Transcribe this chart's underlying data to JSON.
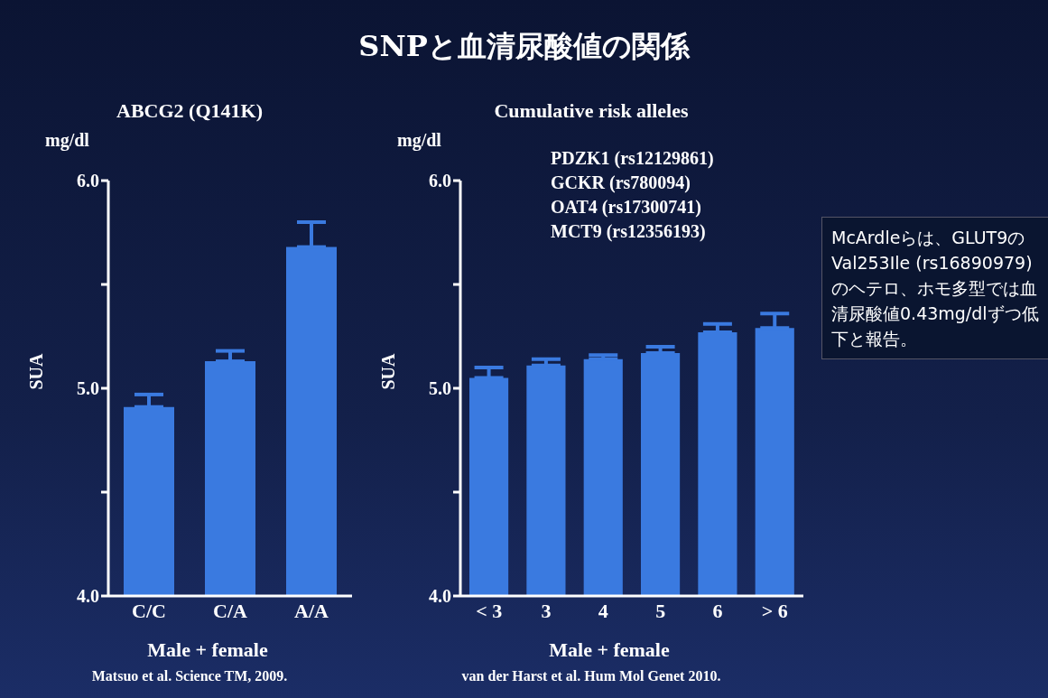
{
  "chart_data": [
    {
      "type": "bar",
      "title": "ABCG2 (Q141K)",
      "xlabel": "Male + female",
      "ylabel": "SUA",
      "categories": [
        "C/C",
        "C/A",
        "A/A"
      ],
      "values": [
        4.91,
        5.13,
        5.68
      ],
      "errors": [
        [
          4.91,
          4.97
        ],
        [
          5.13,
          5.18
        ],
        [
          5.68,
          5.8
        ]
      ],
      "color": "#3a7ae0",
      "ylim": [
        4,
        6
      ],
      "yticks": [
        {
          "value": 4,
          "label": "4.0"
        },
        {
          "value": 4.5,
          "label": null
        },
        {
          "value": 5,
          "label": "5.0"
        },
        {
          "value": 5.5,
          "label": null
        },
        {
          "value": 6,
          "label": "6.0"
        }
      ],
      "grid": false,
      "legend": false,
      "annotations": [
        "mg/dl",
        "Matsuo et al. Science TM, 2009."
      ]
    },
    {
      "type": "bar",
      "title": "SNPと血清尿酸値の関係",
      "subtitle": "Cumulative risk alleles",
      "xlabel": "Male + female",
      "ylabel": "SUA",
      "categories": [
        "< 3",
        "3",
        "4",
        "5",
        "6",
        "> 6"
      ],
      "values": [
        5.05,
        5.11,
        5.14,
        5.17,
        5.27,
        5.29
      ],
      "errors": [
        [
          5.05,
          5.1
        ],
        [
          5.11,
          5.14
        ],
        [
          5.14,
          5.16
        ],
        [
          5.17,
          5.2
        ],
        [
          5.27,
          5.31
        ],
        [
          5.29,
          5.36
        ]
      ],
      "color": "#3a7ae0",
      "ylim": [
        4,
        6
      ],
      "yticks": [
        {
          "value": 4,
          "label": "4.0"
        },
        {
          "value": 4.5,
          "label": null
        },
        {
          "value": 5,
          "label": "5.0"
        },
        {
          "value": 5.5,
          "label": null
        },
        {
          "value": 6,
          "label": "6.0"
        }
      ],
      "grid": false,
      "legend": false,
      "annotations": [
        "mg/dl",
        "PDZK1 (rs12129861)",
        "GCKR (rs780094)",
        "OAT4 (rs17300741)",
        "MCT9 (rs12356193)",
        "McArdleらは、GLUT9のVal253Ile (rs16890979)のヘテロ、ホモ多型では血清尿酸値0.43mg/dlずつ低下と報告。",
        "van der Harst et al. Hum Mol Genet 2010."
      ]
    }
  ]
}
